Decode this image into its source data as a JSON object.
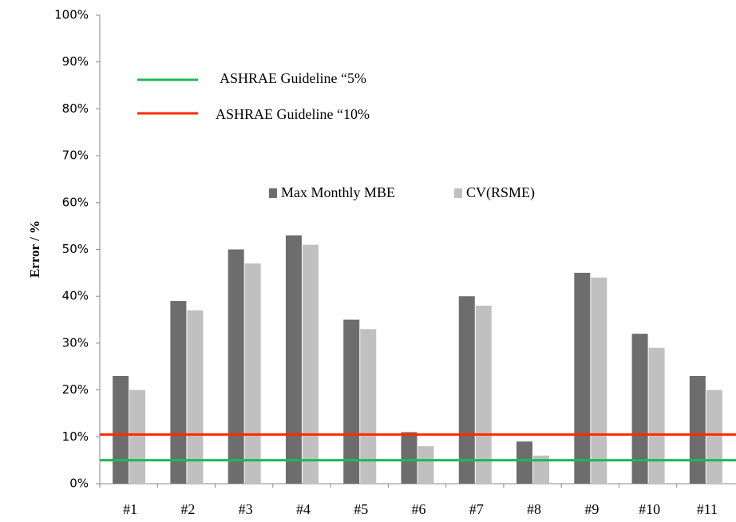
{
  "chart_data": {
    "type": "bar",
    "y_label": "Error / %",
    "categories": [
      "#1",
      "#2",
      "#3",
      "#4",
      "#5",
      "#6",
      "#7",
      "#8",
      "#9",
      "#10",
      "#11"
    ],
    "series": [
      {
        "name": "Max Monthly MBE",
        "color": "#6d6d6d",
        "values": [
          23,
          39,
          50,
          53,
          35,
          11,
          40,
          9,
          45,
          32,
          23
        ]
      },
      {
        "name": "CV(RSME)",
        "color": "#c0c0c0",
        "values": [
          20,
          37,
          47,
          51,
          33,
          8,
          38,
          6,
          44,
          29,
          20
        ]
      }
    ],
    "reference_lines": [
      {
        "name": "ASHRAE Guideline “5%",
        "color": "#1db954",
        "value": 5
      },
      {
        "name": "ASHRAE Guideline “10%",
        "color": "#ff2a00",
        "value": 10.5
      }
    ],
    "ylim": [
      0,
      100
    ],
    "yticks": [
      {
        "value": 0,
        "label": "0%"
      },
      {
        "value": 10,
        "label": "10%"
      },
      {
        "value": 20,
        "label": "20%"
      },
      {
        "value": 30,
        "label": "30%"
      },
      {
        "value": 40,
        "label": "40%"
      },
      {
        "value": 50,
        "label": "50%"
      },
      {
        "value": 60,
        "label": "60%"
      },
      {
        "value": 70,
        "label": "70%"
      },
      {
        "value": 80,
        "label": "80%"
      },
      {
        "value": 90,
        "label": "90%"
      },
      {
        "value": 100,
        "label": "100%"
      }
    ]
  }
}
